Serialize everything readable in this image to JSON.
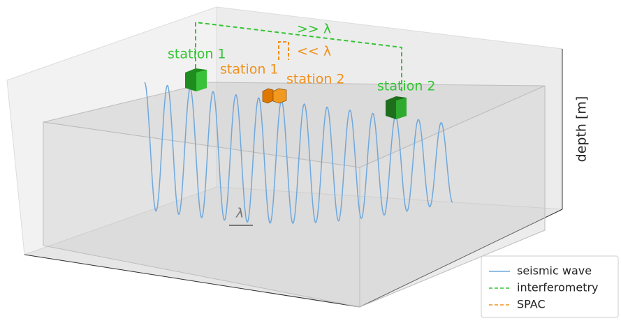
{
  "wave_label": "λ",
  "interferometry": {
    "stations": [
      "station 1",
      "station 2"
    ],
    "separation": ">> λ"
  },
  "spac": {
    "stations": [
      "station 1",
      "station 2"
    ],
    "separation": "<< λ"
  },
  "axis_label": "depth [m]",
  "legend": [
    "seismic wave",
    "interferometry",
    "SPAC"
  ]
}
